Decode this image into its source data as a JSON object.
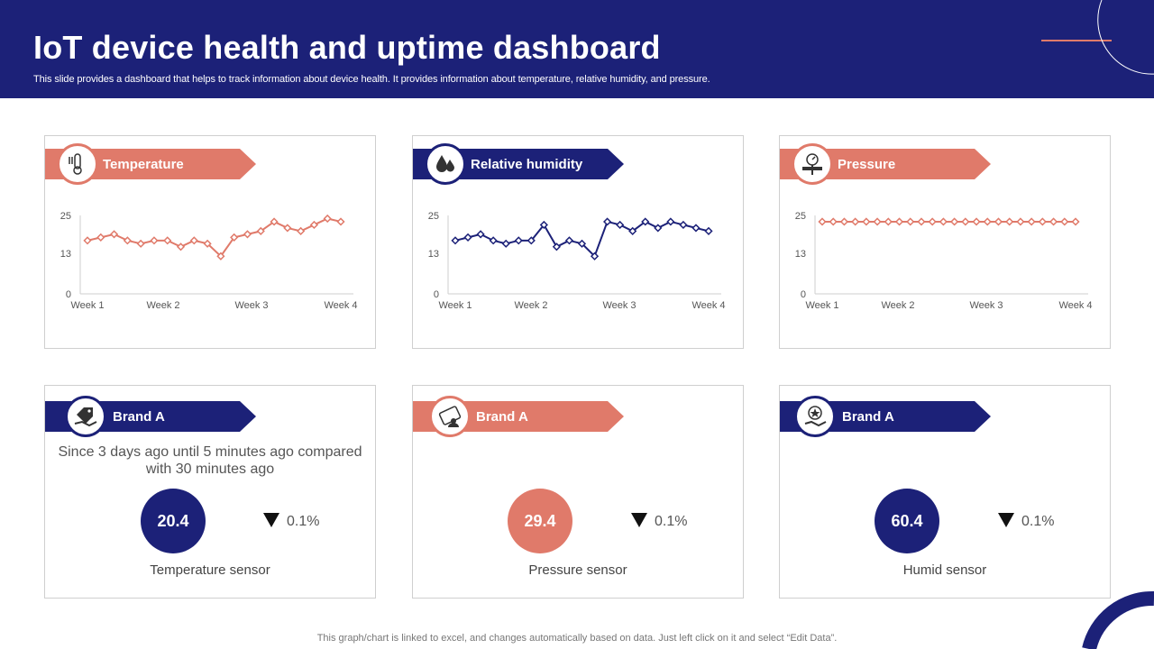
{
  "header": {
    "title": "IoT device health and uptime dashboard",
    "subtitle": "This slide provides a dashboard that helps to track information about device health. It provides information about temperature, relative humidity, and pressure."
  },
  "colors": {
    "navy": "#1c2178",
    "salmon": "#e07a6a"
  },
  "charts": [
    {
      "label": "Temperature",
      "icon": "thermometer-icon",
      "color": "#e07a6a"
    },
    {
      "label": "Relative humidity",
      "icon": "water-drops-icon",
      "color": "#1c2178"
    },
    {
      "label": "Pressure",
      "icon": "pressure-gauge-icon",
      "color": "#e07a6a"
    }
  ],
  "chart_data": [
    {
      "type": "line",
      "title": "Temperature",
      "y_ticks": [
        "25",
        "13",
        "0"
      ],
      "x_ticks": [
        "Week 1",
        "Week 2",
        "Week 3",
        "Week 4"
      ],
      "ylim": [
        0,
        25
      ],
      "series": [
        {
          "values": [
            17,
            18,
            19,
            17,
            16,
            17,
            17,
            15,
            17,
            16,
            12,
            18,
            19,
            20,
            23,
            21,
            20,
            22,
            24,
            23
          ]
        }
      ]
    },
    {
      "type": "line",
      "title": "Relative humidity",
      "y_ticks": [
        "25",
        "13",
        "0"
      ],
      "x_ticks": [
        "Week 1",
        "Week 2",
        "Week 3",
        "Week 4"
      ],
      "ylim": [
        0,
        25
      ],
      "series": [
        {
          "values": [
            17,
            18,
            19,
            17,
            16,
            17,
            17,
            22,
            15,
            17,
            16,
            12,
            23,
            22,
            20,
            23,
            21,
            23,
            22,
            21,
            20
          ]
        }
      ]
    },
    {
      "type": "line",
      "title": "Pressure",
      "y_ticks": [
        "25",
        "13",
        "0"
      ],
      "x_ticks": [
        "Week 1",
        "Week 2",
        "Week 3",
        "Week 4"
      ],
      "ylim": [
        0,
        25
      ],
      "series": [
        {
          "values": [
            23,
            23,
            23,
            23,
            23,
            23,
            23,
            23,
            23,
            23,
            23,
            23,
            23,
            23,
            23,
            23,
            23,
            23,
            23,
            23,
            23,
            23,
            23,
            23
          ]
        }
      ]
    }
  ],
  "metrics": [
    {
      "label": "Brand A",
      "icon": "price-tag-hand-icon",
      "note": "Since 3 days ago until 5 minutes ago compared with 30 minutes ago",
      "value": "20.4",
      "delta": "0.1%",
      "sensor": "Temperature sensor"
    },
    {
      "label": "Brand A",
      "icon": "sale-tag-icon",
      "value": "29.4",
      "delta": "0.1%",
      "sensor": "Pressure sensor"
    },
    {
      "label": "Brand A",
      "icon": "star-hand-icon",
      "value": "60.4",
      "delta": "0.1%",
      "sensor": "Humid sensor"
    }
  ],
  "footer": "This graph/chart is linked to excel, and changes automatically based on data. Just left click on it and select “Edit Data”."
}
